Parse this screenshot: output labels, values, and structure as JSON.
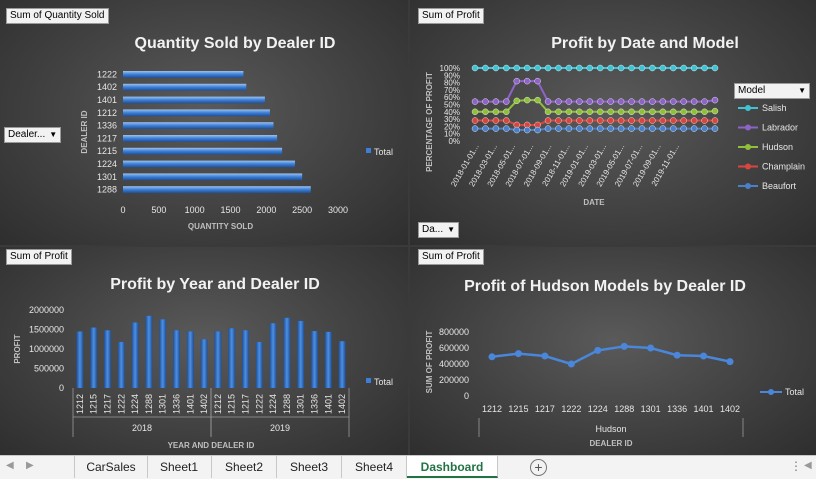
{
  "panels": {
    "qty": {
      "field_button": "Sum of Quantity Sold",
      "filter_button": "Dealer...",
      "legend": "Total"
    },
    "profit_date": {
      "field_button": "Sum of Profit",
      "filter_button": "Da...",
      "legend_header": "Model"
    },
    "profit_year": {
      "field_button": "Sum of Profit",
      "legend": "Total"
    },
    "hudson": {
      "field_button": "Sum of Profit",
      "legend": "Total"
    }
  },
  "chart_data": [
    {
      "type": "bar",
      "orientation": "horizontal",
      "title": "Quantity Sold by Dealer ID",
      "xlabel": "QUANTITY SOLD",
      "ylabel": "DEALER ID",
      "categories": [
        "1222",
        "1402",
        "1401",
        "1212",
        "1336",
        "1217",
        "1215",
        "1224",
        "1301",
        "1288"
      ],
      "series": [
        {
          "name": "Total",
          "values": [
            1680,
            1720,
            1980,
            2050,
            2100,
            2150,
            2220,
            2400,
            2500,
            2620
          ]
        }
      ],
      "xlim": [
        0,
        3000
      ],
      "ticks": [
        "0",
        "500",
        "1000",
        "1500",
        "2000",
        "2500",
        "3000"
      ]
    },
    {
      "type": "line",
      "title": "Profit by Date and Model",
      "xlabel": "DATE",
      "ylabel": "PERCENTAGE OF PROFIT",
      "yticks": [
        "0%",
        "10%",
        "20%",
        "30%",
        "40%",
        "50%",
        "60%",
        "70%",
        "80%",
        "90%",
        "100%"
      ],
      "xticks": [
        "2018-01-01...",
        "2018-03-01...",
        "2018-05-01...",
        "2018-07-01...",
        "2018-09-01...",
        "2018-11-01...",
        "2019-01-01...",
        "2019-03-01...",
        "2019-05-01...",
        "2019-07-01...",
        "2019-09-01...",
        "2019-11-01..."
      ],
      "series": [
        {
          "name": "Salish",
          "color": "#3fc3d4",
          "values": [
            100,
            100,
            100,
            100,
            100,
            100,
            100,
            100,
            100,
            100,
            100,
            100,
            100,
            100,
            100,
            100,
            100,
            100,
            100,
            100,
            100,
            100,
            100,
            100
          ]
        },
        {
          "name": "Labrador",
          "color": "#8e63c8",
          "values": [
            54,
            54,
            54,
            54,
            82,
            82,
            82,
            54,
            54,
            54,
            54,
            54,
            54,
            54,
            54,
            54,
            54,
            54,
            54,
            54,
            54,
            54,
            54,
            56
          ]
        },
        {
          "name": "Hudson",
          "color": "#8fbf3b",
          "values": [
            40,
            40,
            40,
            40,
            55,
            56,
            56,
            40,
            40,
            40,
            40,
            40,
            40,
            40,
            40,
            40,
            40,
            40,
            40,
            40,
            40,
            40,
            40,
            41
          ]
        },
        {
          "name": "Champlain",
          "color": "#d9453f",
          "values": [
            28,
            28,
            28,
            28,
            22,
            22,
            22,
            28,
            28,
            28,
            28,
            28,
            28,
            28,
            28,
            28,
            28,
            28,
            28,
            28,
            28,
            28,
            28,
            28
          ]
        },
        {
          "name": "Beaufort",
          "color": "#4a7fc9",
          "values": [
            17,
            17,
            17,
            17,
            15,
            15,
            15,
            17,
            17,
            17,
            17,
            17,
            17,
            17,
            17,
            17,
            17,
            17,
            17,
            17,
            17,
            17,
            17,
            17
          ]
        }
      ]
    },
    {
      "type": "bar",
      "title": "Profit by Year and Dealer ID",
      "xlabel": "YEAR AND DEALER ID",
      "ylabel": "PROFIT",
      "yticks": [
        "0",
        "500000",
        "1000000",
        "1500000",
        "2000000"
      ],
      "ylim": [
        0,
        2000000
      ],
      "groups": [
        {
          "name": "2018",
          "categories": [
            "1212",
            "1215",
            "1217",
            "1222",
            "1224",
            "1288",
            "1301",
            "1336",
            "1401",
            "1402"
          ],
          "values": [
            1450000,
            1550000,
            1480000,
            1180000,
            1680000,
            1850000,
            1760000,
            1480000,
            1450000,
            1250000
          ]
        },
        {
          "name": "2019",
          "categories": [
            "1212",
            "1215",
            "1217",
            "1222",
            "1224",
            "1288",
            "1301",
            "1336",
            "1401",
            "1402"
          ],
          "values": [
            1450000,
            1530000,
            1480000,
            1180000,
            1660000,
            1800000,
            1720000,
            1460000,
            1440000,
            1200000
          ]
        }
      ],
      "series": [
        {
          "name": "Total"
        }
      ]
    },
    {
      "type": "line",
      "title": "Profit of Hudson Models by Dealer ID",
      "xlabel": "DEALER ID",
      "ylabel": "SUM OF PROFIT",
      "group_label": "Hudson",
      "yticks": [
        "0",
        "200000",
        "400000",
        "600000",
        "800000"
      ],
      "ylim": [
        0,
        800000
      ],
      "categories": [
        "1212",
        "1215",
        "1217",
        "1222",
        "1224",
        "1288",
        "1301",
        "1336",
        "1401",
        "1402"
      ],
      "series": [
        {
          "name": "Total",
          "values": [
            490000,
            530000,
            500000,
            400000,
            570000,
            620000,
            600000,
            510000,
            500000,
            430000
          ]
        }
      ]
    }
  ],
  "sheet_tabs": [
    "CarSales",
    "Sheet1",
    "Sheet2",
    "Sheet3",
    "Sheet4",
    "Dashboard"
  ],
  "active_tab": "Dashboard"
}
